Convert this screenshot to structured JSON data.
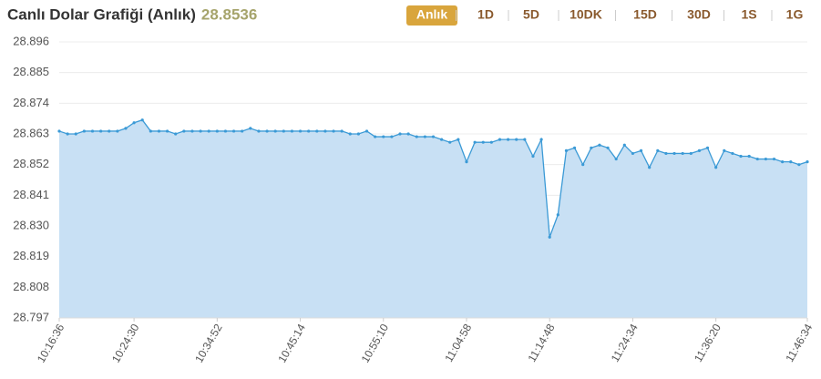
{
  "header": {
    "title": "Canlı Dolar Grafiği (Anlık)",
    "value": "28.8536"
  },
  "range_buttons": [
    "Anlık",
    "1D",
    "5D",
    "10DK",
    "15D",
    "30D",
    "1S",
    "1G"
  ],
  "active_range": 0,
  "chart_data": {
    "type": "area",
    "color": "#3b9ad6",
    "fill": "#c8e0f4",
    "grid": true,
    "categories": [
      "10:16:36",
      null,
      null,
      null,
      null,
      null,
      null,
      null,
      null,
      "10:24:30",
      null,
      null,
      null,
      null,
      null,
      null,
      null,
      null,
      null,
      "10:34:52",
      null,
      null,
      null,
      null,
      null,
      null,
      null,
      null,
      null,
      "10:45:14",
      null,
      null,
      null,
      null,
      null,
      null,
      null,
      null,
      null,
      "10:55:10",
      null,
      null,
      null,
      null,
      null,
      null,
      null,
      null,
      null,
      "11:04:58",
      null,
      null,
      null,
      null,
      null,
      null,
      null,
      null,
      null,
      "11:14:48",
      null,
      null,
      null,
      null,
      null,
      null,
      null,
      null,
      null,
      "11:24:34",
      null,
      null,
      null,
      null,
      null,
      null,
      null,
      null,
      null,
      "11:36:20",
      null,
      null,
      null,
      null,
      null,
      null,
      null,
      null,
      null,
      null,
      "11:46:34"
    ],
    "values": [
      28.864,
      28.863,
      28.863,
      28.864,
      28.864,
      28.864,
      28.864,
      28.864,
      28.865,
      28.867,
      28.868,
      28.864,
      28.864,
      28.864,
      28.863,
      28.864,
      28.864,
      28.864,
      28.864,
      28.864,
      28.864,
      28.864,
      28.864,
      28.865,
      28.864,
      28.864,
      28.864,
      28.864,
      28.864,
      28.864,
      28.864,
      28.864,
      28.864,
      28.864,
      28.864,
      28.863,
      28.863,
      28.864,
      28.862,
      28.862,
      28.862,
      28.863,
      28.863,
      28.862,
      28.862,
      28.862,
      28.861,
      28.86,
      28.861,
      28.853,
      28.86,
      28.86,
      28.86,
      28.861,
      28.861,
      28.861,
      28.861,
      28.855,
      28.861,
      28.826,
      28.834,
      28.857,
      28.858,
      28.852,
      28.858,
      28.859,
      28.858,
      28.854,
      28.859,
      28.856,
      28.857,
      28.851,
      28.857,
      28.856,
      28.856,
      28.856,
      28.856,
      28.857,
      28.858,
      28.851,
      28.857,
      28.856,
      28.855,
      28.855,
      28.854,
      28.854,
      28.854,
      28.853,
      28.853,
      28.852,
      28.853
    ],
    "ylim": [
      28.797,
      28.896
    ],
    "yticks": [
      28.797,
      28.808,
      28.819,
      {
        "value": 28.83,
        "label": "28.830"
      },
      28.841,
      28.852,
      28.863,
      28.874,
      28.885,
      28.896
    ]
  }
}
